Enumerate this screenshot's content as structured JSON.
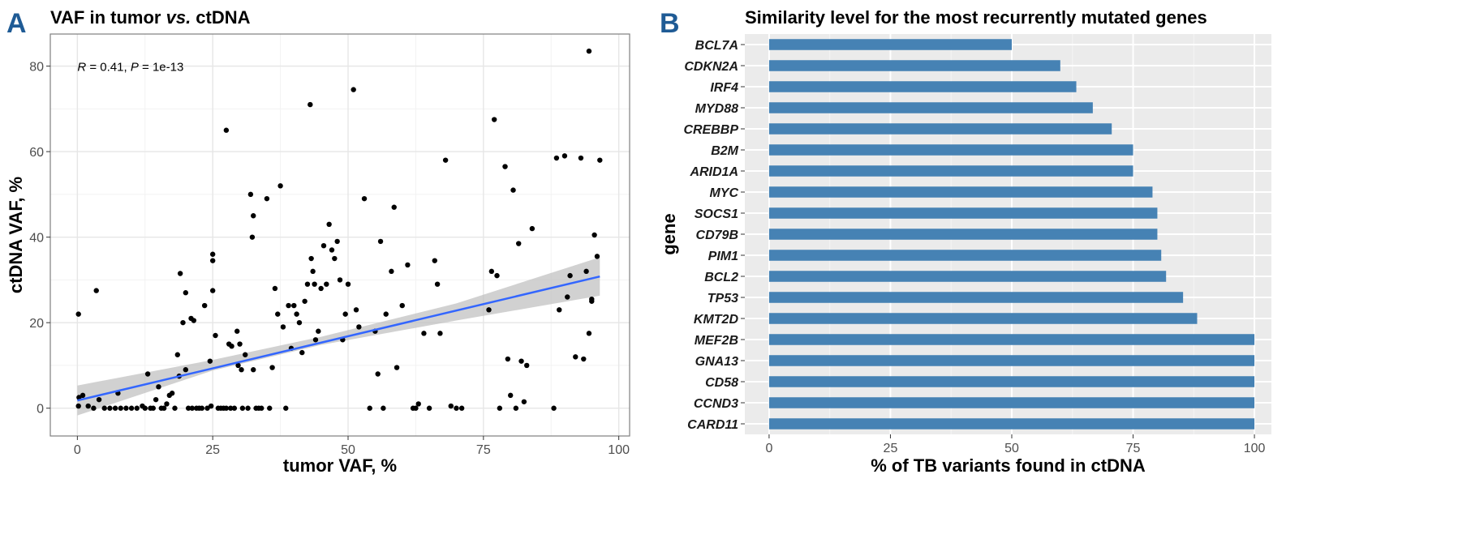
{
  "colors": {
    "panel_letter": "#1f5b95",
    "point": "#000000",
    "trend_line": "#3366ff",
    "confidence_band": "#bebebe",
    "bar": "#4682b4",
    "plot_bg_b": "#ebebeb",
    "grid": "#e6e6e6",
    "panel_border": "#7f7f7f"
  },
  "panels": {
    "a": {
      "letter": "A",
      "title_part1": "VAF in tumor ",
      "title_italic": "vs.",
      "title_part2": " ctDNA"
    },
    "b": {
      "letter": "B",
      "title": "Similarity level for the most recurrently mutated genes"
    }
  },
  "chart_data": [
    {
      "type": "scatter",
      "title": "VAF in tumor vs. ctDNA",
      "xlabel": "tumor VAF, %",
      "ylabel": "ctDNA VAF, %",
      "xlim": [
        -5,
        102
      ],
      "ylim": [
        -6.5,
        87.5
      ],
      "xticks": [
        0,
        25,
        50,
        75,
        100
      ],
      "yticks": [
        0,
        20,
        40,
        60,
        80
      ],
      "grid": true,
      "annotation": {
        "r_label": "R",
        "r_text": " = 0.41, ",
        "p_label": "P",
        "p_text": " = 1e-13"
      },
      "trend_line": {
        "x": [
          0,
          96.5
        ],
        "y": [
          1.8,
          30.8
        ]
      },
      "confidence_band": {
        "x": [
          0,
          25,
          45,
          70,
          96.5
        ],
        "lower": [
          -1.7,
          8.8,
          14.8,
          20.5,
          26.3
        ],
        "upper": [
          5.3,
          11.3,
          16.7,
          24.5,
          35.3
        ]
      },
      "points": [
        [
          0.2,
          22
        ],
        [
          0.3,
          2.5
        ],
        [
          0.2,
          0.5
        ],
        [
          1,
          3
        ],
        [
          2,
          0.5
        ],
        [
          3,
          0
        ],
        [
          3.5,
          27.5
        ],
        [
          4,
          2
        ],
        [
          5,
          0
        ],
        [
          6,
          0
        ],
        [
          7,
          0
        ],
        [
          7.5,
          3.5
        ],
        [
          8,
          0
        ],
        [
          9,
          0
        ],
        [
          10,
          0
        ],
        [
          11,
          0
        ],
        [
          12,
          0.5
        ],
        [
          12.5,
          0
        ],
        [
          13,
          8
        ],
        [
          13.5,
          0
        ],
        [
          14,
          0
        ],
        [
          14.5,
          2
        ],
        [
          15,
          5
        ],
        [
          15.5,
          0
        ],
        [
          16,
          0
        ],
        [
          16.5,
          1
        ],
        [
          17,
          3
        ],
        [
          17.5,
          3.5
        ],
        [
          18,
          0
        ],
        [
          18.5,
          12.5
        ],
        [
          18.8,
          7.5
        ],
        [
          19,
          31.5
        ],
        [
          19.5,
          20
        ],
        [
          20,
          27
        ],
        [
          20,
          9
        ],
        [
          20.5,
          0
        ],
        [
          21,
          21
        ],
        [
          21.2,
          0
        ],
        [
          21.5,
          20.5
        ],
        [
          22,
          0
        ],
        [
          22.5,
          0
        ],
        [
          23,
          0
        ],
        [
          23.5,
          24
        ],
        [
          24,
          0
        ],
        [
          24.5,
          11
        ],
        [
          24.7,
          0.5
        ],
        [
          25,
          36
        ],
        [
          25,
          34.5
        ],
        [
          25,
          27.5
        ],
        [
          25.5,
          17
        ],
        [
          26,
          0
        ],
        [
          26.5,
          0
        ],
        [
          27,
          0
        ],
        [
          27.5,
          0
        ],
        [
          27.5,
          65
        ],
        [
          28,
          15
        ],
        [
          28.3,
          0
        ],
        [
          28.5,
          14.5
        ],
        [
          29,
          0
        ],
        [
          29.5,
          18
        ],
        [
          29.7,
          10
        ],
        [
          30,
          15
        ],
        [
          30.3,
          9
        ],
        [
          30.5,
          0
        ],
        [
          31,
          12.5
        ],
        [
          31.5,
          0
        ],
        [
          32,
          50
        ],
        [
          32.5,
          45
        ],
        [
          32.3,
          40
        ],
        [
          32.5,
          9
        ],
        [
          33,
          0
        ],
        [
          33.5,
          0
        ],
        [
          34,
          0
        ],
        [
          35,
          49
        ],
        [
          35.5,
          0
        ],
        [
          36,
          9.5
        ],
        [
          36.5,
          28
        ],
        [
          37,
          22
        ],
        [
          37.5,
          52
        ],
        [
          38,
          19
        ],
        [
          38.5,
          0
        ],
        [
          39,
          24
        ],
        [
          39.5,
          14
        ],
        [
          40,
          24
        ],
        [
          40.5,
          22
        ],
        [
          41,
          20
        ],
        [
          41.5,
          13
        ],
        [
          42,
          25
        ],
        [
          42.5,
          29
        ],
        [
          43,
          71
        ],
        [
          43.2,
          35
        ],
        [
          43.5,
          32
        ],
        [
          43.8,
          29
        ],
        [
          44,
          16
        ],
        [
          44.5,
          18
        ],
        [
          45,
          28
        ],
        [
          45.5,
          38
        ],
        [
          46,
          29
        ],
        [
          46.5,
          43
        ],
        [
          47,
          37
        ],
        [
          47.5,
          35
        ],
        [
          48,
          39
        ],
        [
          48.5,
          30
        ],
        [
          49,
          16
        ],
        [
          49.5,
          22
        ],
        [
          50,
          29
        ],
        [
          51,
          74.5
        ],
        [
          51.5,
          23
        ],
        [
          52,
          19
        ],
        [
          53,
          49
        ],
        [
          54,
          0
        ],
        [
          55,
          18
        ],
        [
          55.5,
          8
        ],
        [
          56,
          39
        ],
        [
          56.5,
          0
        ],
        [
          57,
          22
        ],
        [
          58,
          32
        ],
        [
          58.5,
          47
        ],
        [
          59,
          9.5
        ],
        [
          60,
          24
        ],
        [
          61,
          33.5
        ],
        [
          62,
          0
        ],
        [
          62.5,
          0
        ],
        [
          63,
          1
        ],
        [
          64,
          17.5
        ],
        [
          65,
          0
        ],
        [
          66,
          34.5
        ],
        [
          66.5,
          29
        ],
        [
          67,
          17.5
        ],
        [
          68,
          58
        ],
        [
          69,
          0.5
        ],
        [
          70,
          0
        ],
        [
          71,
          0
        ],
        [
          76,
          23
        ],
        [
          76.5,
          32
        ],
        [
          77,
          67.5
        ],
        [
          77.5,
          31
        ],
        [
          78,
          0
        ],
        [
          79,
          56.5
        ],
        [
          79.5,
          11.5
        ],
        [
          80,
          3
        ],
        [
          80.5,
          51
        ],
        [
          81,
          0
        ],
        [
          81.5,
          38.5
        ],
        [
          82,
          11
        ],
        [
          82.5,
          1.5
        ],
        [
          83,
          10
        ],
        [
          84,
          42
        ],
        [
          88,
          0
        ],
        [
          88.5,
          58.5
        ],
        [
          89,
          23
        ],
        [
          90,
          59
        ],
        [
          90.5,
          26
        ],
        [
          91,
          31
        ],
        [
          92,
          12
        ],
        [
          93,
          58.5
        ],
        [
          93.5,
          11.5
        ],
        [
          94,
          32
        ],
        [
          94.5,
          17.5
        ],
        [
          95,
          25
        ],
        [
          95.5,
          40.5
        ],
        [
          96,
          35.5
        ],
        [
          96.5,
          58
        ],
        [
          94.5,
          83.5
        ],
        [
          95,
          25.5
        ]
      ]
    },
    {
      "type": "bar",
      "orientation": "horizontal",
      "title": "Similarity level for the most recurrently mutated genes",
      "xlabel": "% of TB  variants found in ctDNA",
      "ylabel": "gene",
      "xlim": [
        -5,
        103.5
      ],
      "xticks": [
        0,
        25,
        50,
        75,
        100
      ],
      "grid": true,
      "categories": [
        "BCL7A",
        "CDKN2A",
        "IRF4",
        "MYD88",
        "CREBBP",
        "B2M",
        "ARID1A",
        "MYC",
        "SOCS1",
        "CD79B",
        "PIM1",
        "BCL2",
        "TP53",
        "KMT2D",
        "MEF2B",
        "GNA13",
        "CD58",
        "CCND3",
        "CARD11"
      ],
      "values": [
        50,
        60,
        63.3,
        66.7,
        70.6,
        75,
        75,
        79,
        80,
        80,
        80.8,
        81.8,
        85.3,
        88.2,
        100,
        100,
        100,
        100,
        100
      ]
    }
  ]
}
